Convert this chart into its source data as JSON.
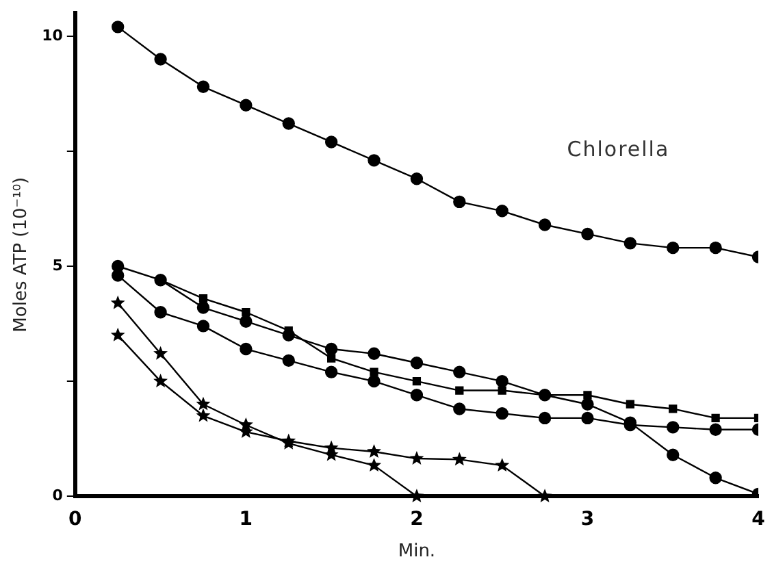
{
  "chart_data": {
    "type": "line",
    "xlabel": "Min.",
    "ylabel": "Moles ATP (10⁻¹⁰)",
    "annotations": [
      "Chlorella"
    ],
    "xlim": [
      0,
      4
    ],
    "xticks": [
      0,
      1,
      2,
      3,
      4
    ],
    "ylim": [
      0,
      10.5
    ],
    "yticks": [
      0,
      {
        "value": 2.5,
        "label": null
      },
      5,
      {
        "value": 7.5,
        "label": null
      },
      10
    ],
    "grid": false,
    "legend": false,
    "line_style": "solid",
    "series": [
      {
        "color": "#000000",
        "marker": "circle",
        "x": [
          0.25,
          0.5,
          0.75,
          1,
          1.25,
          1.5,
          1.75,
          2,
          2.25,
          2.5,
          2.75,
          3,
          3.25,
          3.5,
          3.75,
          4
        ],
        "values": [
          10.2,
          9.5,
          8.9,
          8.5,
          8.1,
          7.7,
          7.3,
          6.9,
          6.4,
          6.2,
          5.9,
          5.7,
          5.5,
          5.4,
          5.4,
          5.2
        ]
      },
      {
        "color": "#000000",
        "marker": "circle",
        "x": [
          0.25,
          0.5,
          0.75,
          1,
          1.25,
          1.5,
          1.75,
          2,
          2.25,
          2.5,
          2.75,
          3,
          3.25,
          3.5,
          3.75,
          4
        ],
        "values": [
          5.0,
          4.7,
          4.1,
          3.8,
          3.5,
          3.2,
          3.1,
          2.9,
          2.7,
          2.5,
          2.2,
          2.0,
          1.6,
          0.9,
          0.4,
          0.05
        ]
      },
      {
        "color": "#000000",
        "marker": "square",
        "x": [
          0.5,
          0.75,
          1,
          1.25,
          1.5,
          1.75,
          2,
          2.25,
          2.5,
          2.75,
          3,
          3.25,
          3.5,
          3.75,
          4
        ],
        "values": [
          4.7,
          4.3,
          4.0,
          3.6,
          3.0,
          2.7,
          2.5,
          2.3,
          2.3,
          2.2,
          2.2,
          2.0,
          1.9,
          1.7,
          1.7
        ]
      },
      {
        "color": "#000000",
        "marker": "circle",
        "x": [
          0.25,
          0.5,
          0.75,
          1,
          1.25,
          1.5,
          1.75,
          2,
          2.25,
          2.5,
          2.75,
          3,
          3.25,
          3.5,
          3.75,
          4
        ],
        "values": [
          4.8,
          4.0,
          3.7,
          3.2,
          2.95,
          2.7,
          2.5,
          2.2,
          1.9,
          1.8,
          1.7,
          1.7,
          1.55,
          1.5,
          1.45,
          1.45
        ]
      },
      {
        "color": "#000000",
        "marker": "star",
        "x": [
          0.25,
          0.5,
          0.75,
          1,
          1.25,
          1.5,
          1.75,
          2
        ],
        "values": [
          4.2,
          3.1,
          2.0,
          1.55,
          1.15,
          0.9,
          0.67,
          0
        ]
      },
      {
        "color": "#000000",
        "marker": "star",
        "x": [
          0.25,
          0.5,
          0.75,
          1,
          1.25,
          1.5,
          1.75,
          2,
          2.25,
          2.5,
          2.75
        ],
        "values": [
          3.5,
          2.5,
          1.75,
          1.4,
          1.2,
          1.05,
          0.97,
          0.82,
          0.8,
          0.67,
          0
        ]
      }
    ]
  }
}
